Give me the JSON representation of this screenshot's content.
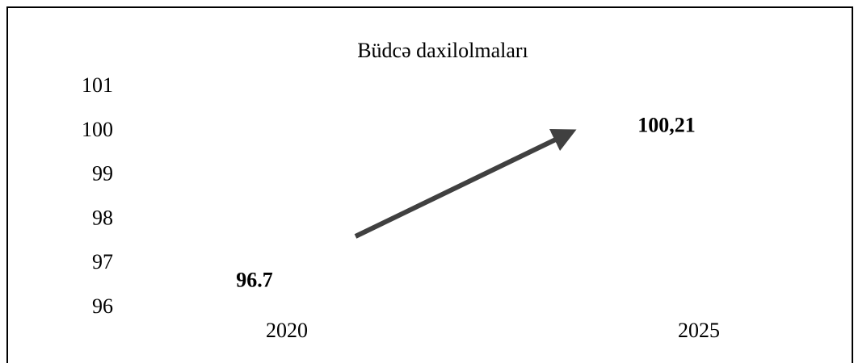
{
  "chart_data": {
    "type": "line",
    "title": "Büdcə daxilolmaları",
    "categories": [
      "2020",
      "2025"
    ],
    "values": [
      96.7,
      100.21
    ],
    "value_labels": [
      "96.7",
      "100,21"
    ],
    "ylim": [
      96,
      101
    ],
    "yticks": [
      96,
      97,
      98,
      99,
      100,
      101
    ],
    "grid": false
  }
}
